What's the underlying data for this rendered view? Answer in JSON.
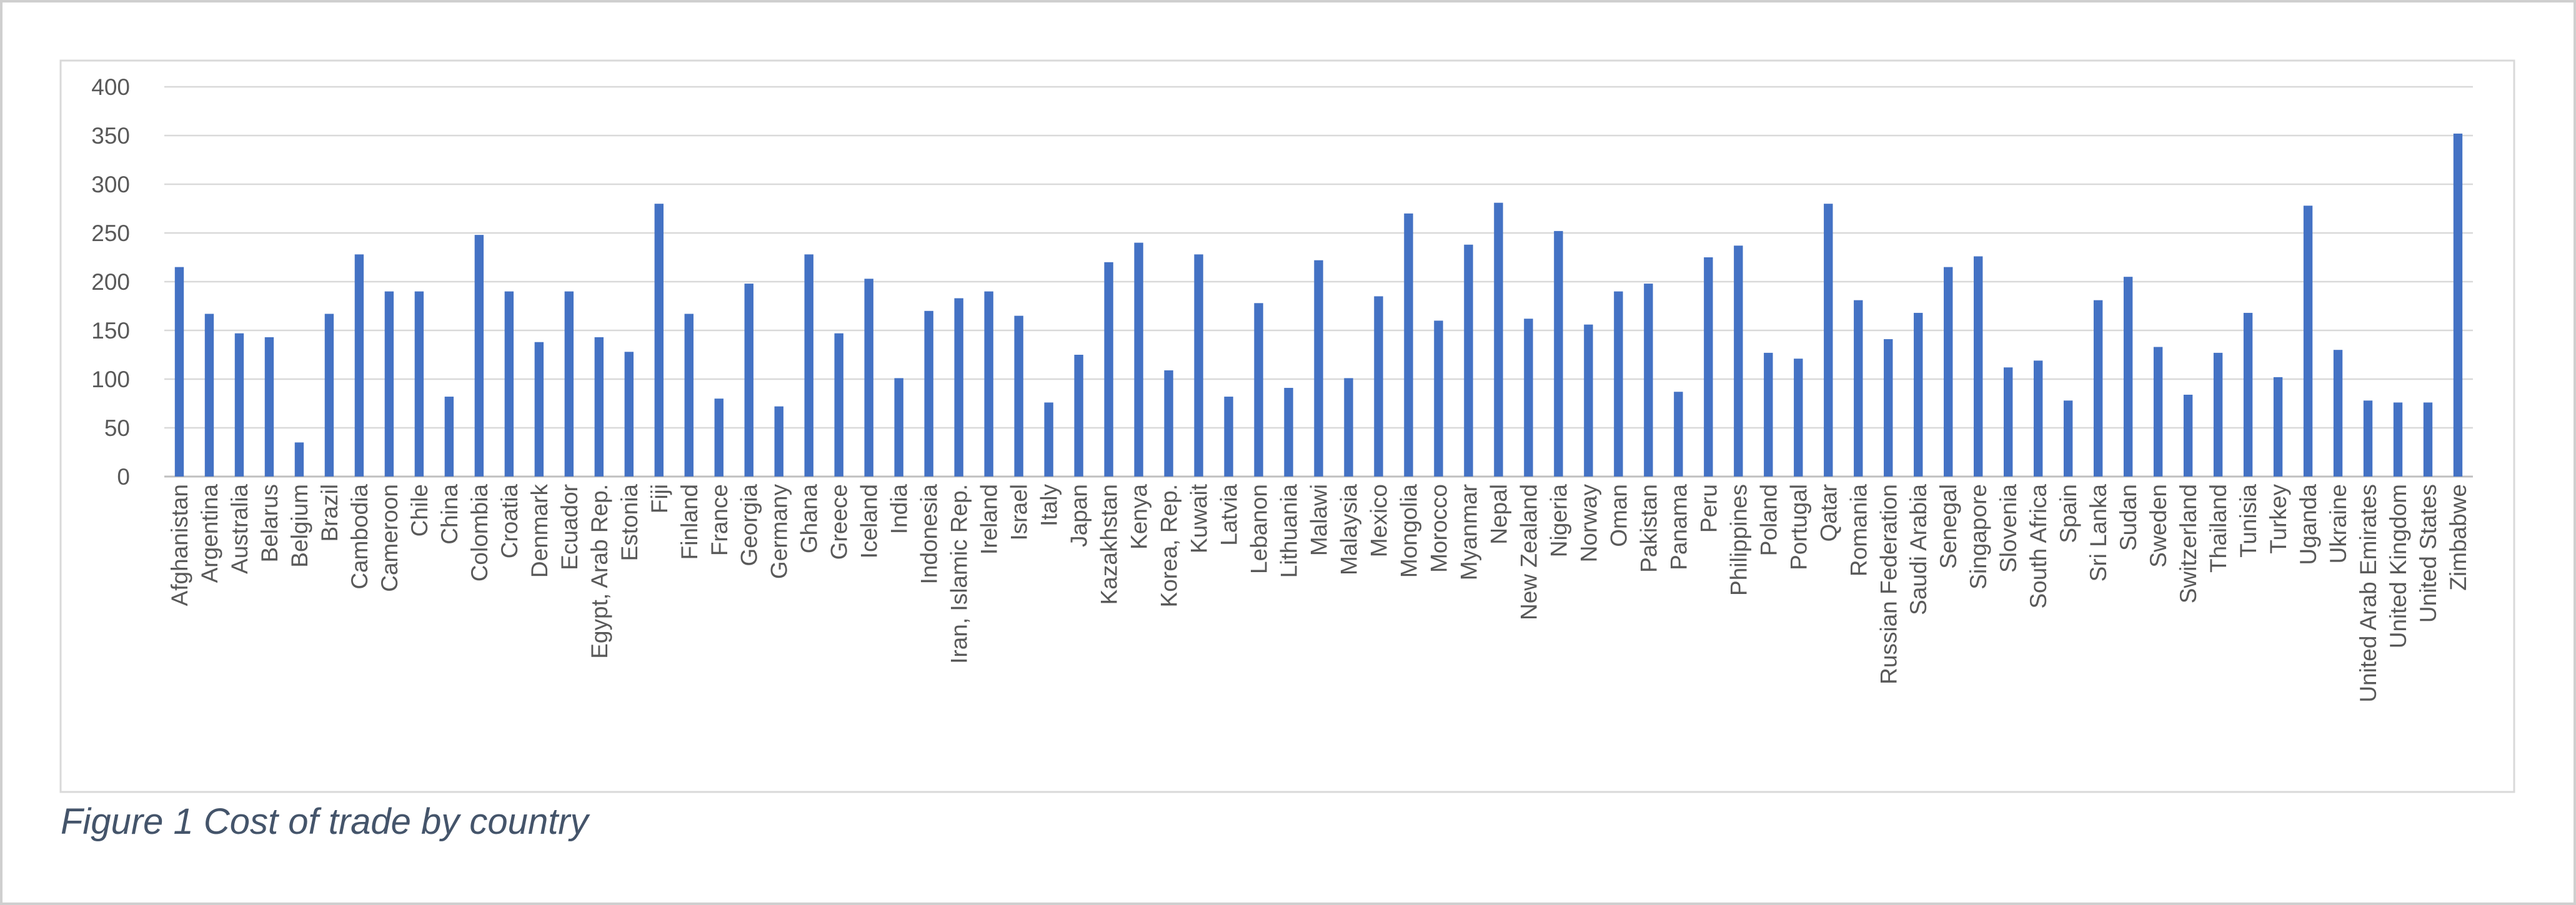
{
  "chart_data": {
    "type": "bar",
    "title": "Figure 1 Cost of trade by country",
    "categories": [
      "Afghanistan",
      "Argentina",
      "Australia",
      "Belarus",
      "Belgium",
      "Brazil",
      "Cambodia",
      "Cameroon",
      "Chile",
      "China",
      "Colombia",
      "Croatia",
      "Denmark",
      "Ecuador",
      "Egypt, Arab Rep.",
      "Estonia",
      "Fiji",
      "Finland",
      "France",
      "Georgia",
      "Germany",
      "Ghana",
      "Greece",
      "Iceland",
      "India",
      "Indonesia",
      "Iran, Islamic Rep.",
      "Ireland",
      "Israel",
      "Italy",
      "Japan",
      "Kazakhstan",
      "Kenya",
      "Korea, Rep.",
      "Kuwait",
      "Latvia",
      "Lebanon",
      "Lithuania",
      "Malawi",
      "Malaysia",
      "Mexico",
      "Mongolia",
      "Morocco",
      "Myanmar",
      "Nepal",
      "New Zealand",
      "Nigeria",
      "Norway",
      "Oman",
      "Pakistan",
      "Panama",
      "Peru",
      "Philippines",
      "Poland",
      "Portugal",
      "Qatar",
      "Romania",
      "Russian Federation",
      "Saudi Arabia",
      "Senegal",
      "Singapore",
      "Slovenia",
      "South Africa",
      "Spain",
      "Sri Lanka",
      "Sudan",
      "Sweden",
      "Switzerland",
      "Thailand",
      "Tunisia",
      "Turkey",
      "Uganda",
      "Ukraine",
      "United Arab Emirates",
      "United Kingdom",
      "United States",
      "Zimbabwe"
    ],
    "values": [
      215,
      167,
      147,
      143,
      35,
      167,
      228,
      190,
      190,
      82,
      248,
      190,
      138,
      190,
      143,
      128,
      280,
      167,
      80,
      198,
      72,
      228,
      147,
      203,
      101,
      170,
      183,
      190,
      165,
      76,
      125,
      220,
      240,
      109,
      228,
      82,
      178,
      91,
      222,
      101,
      185,
      270,
      160,
      238,
      281,
      162,
      252,
      156,
      190,
      198,
      87,
      225,
      237,
      127,
      121,
      280,
      181,
      141,
      168,
      215,
      226,
      112,
      119,
      78,
      181,
      205,
      133,
      84,
      127,
      168,
      102,
      278,
      130,
      78,
      76,
      76,
      352
    ],
    "color": "#4472c4",
    "ylim": [
      0,
      400
    ],
    "yticks": [
      0,
      50,
      100,
      150,
      200,
      250,
      300,
      350,
      400
    ],
    "grid": true
  }
}
